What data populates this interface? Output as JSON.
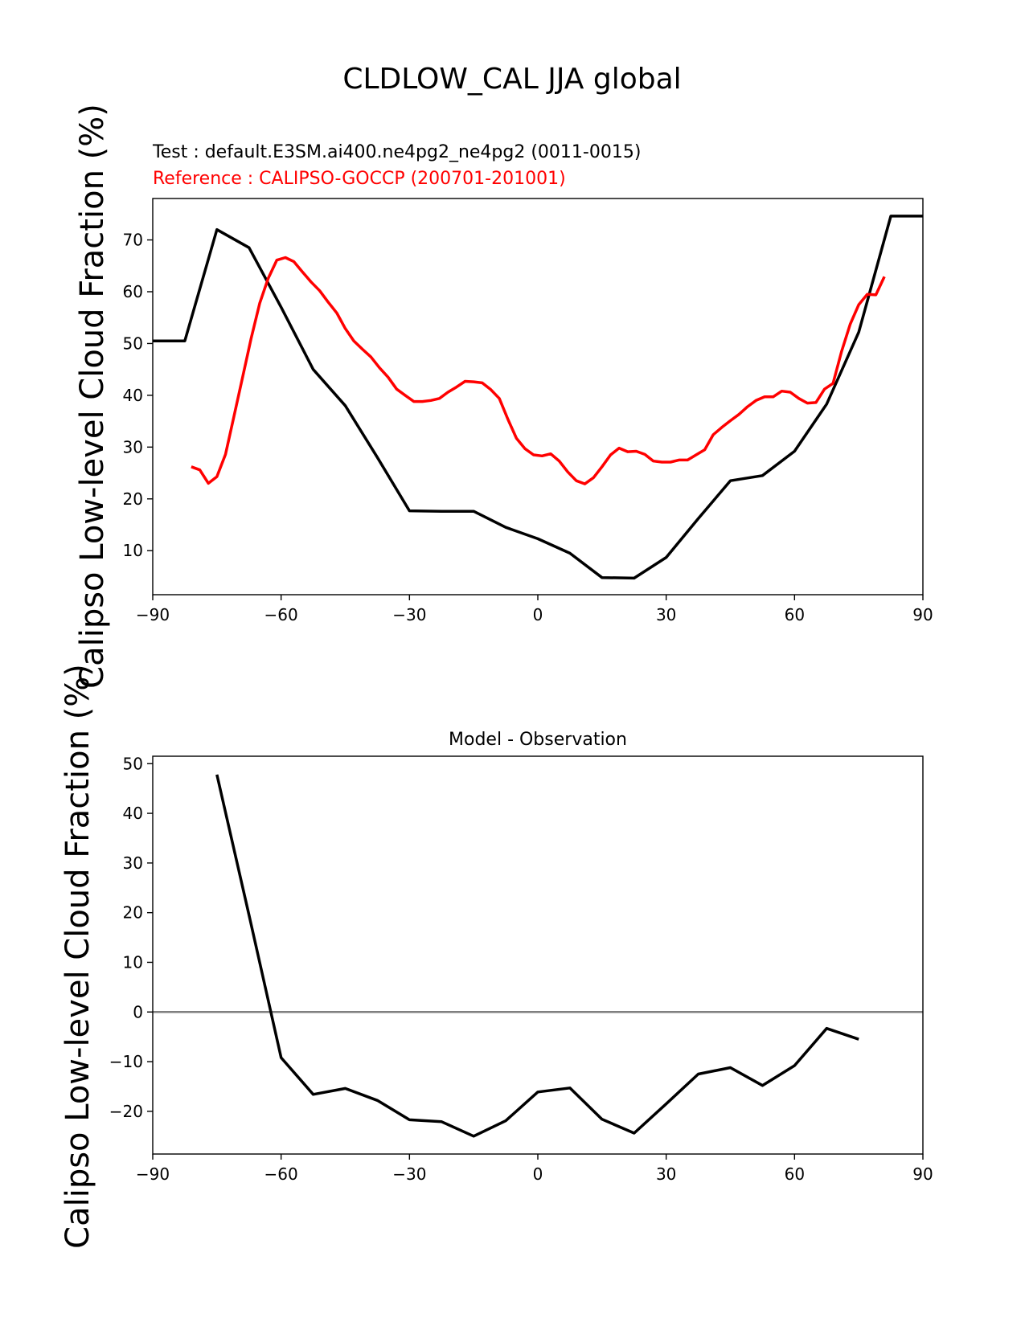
{
  "figure": {
    "title": "CLDLOW_CAL JJA global"
  },
  "chart_data": [
    {
      "type": "line",
      "test_label": "Test : default.E3SM.ai400.ne4pg2_ne4pg2 (0011-0015)",
      "reference_label": "Reference : CALIPSO-GOCCP (200701-201001)",
      "ylabel": "Calipso Low-level Cloud Fraction (%)",
      "xlim": [
        -90,
        90
      ],
      "ylim": [
        1.5,
        78
      ],
      "xticks": [
        -90,
        -60,
        -30,
        0,
        30,
        60,
        90
      ],
      "xtick_labels": [
        "−90",
        "−60",
        "−30",
        "0",
        "30",
        "60",
        "90"
      ],
      "yticks": [
        10,
        20,
        30,
        40,
        50,
        60,
        70
      ],
      "yticks_labels": [
        "10",
        "20",
        "30",
        "40",
        "50",
        "60",
        "70"
      ],
      "series": [
        {
          "color": "#000000",
          "x": [
            -90,
            -82.5,
            -75,
            -67.5,
            -60,
            -52.5,
            -45,
            -37.5,
            -30,
            -22.5,
            -15,
            -7.5,
            0,
            7.5,
            15,
            22.5,
            30,
            37.5,
            45,
            52.5,
            60,
            67.5,
            75,
            82.5,
            90
          ],
          "y": [
            50.5,
            50.5,
            72.0,
            68.5,
            57.0,
            45.0,
            38.0,
            28.0,
            17.7,
            17.6,
            17.6,
            14.5,
            12.3,
            9.5,
            4.8,
            4.7,
            8.7,
            16.2,
            23.5,
            24.5,
            29.2,
            38.3,
            52.2,
            74.6,
            74.6
          ]
        },
        {
          "color": "#ff0000",
          "x": [
            -81,
            -79,
            -77,
            -75,
            -73,
            -71,
            -69,
            -67,
            -65,
            -63,
            -61,
            -59,
            -57,
            -55,
            -53,
            -51,
            -49,
            -47,
            -45,
            -43,
            -41,
            -39,
            -37,
            -35,
            -33,
            -31,
            -29,
            -27,
            -25,
            -23,
            -21,
            -19,
            -17,
            -15,
            -13,
            -11,
            -9,
            -7,
            -5,
            -3,
            -1,
            1,
            3,
            5,
            7,
            9,
            11,
            13,
            15,
            17,
            19,
            21,
            23,
            25,
            27,
            29,
            31,
            33,
            35,
            37,
            39,
            41,
            43,
            45,
            47,
            49,
            51,
            53,
            55,
            57,
            59,
            61,
            63,
            65,
            67,
            69,
            71,
            73,
            75,
            77,
            79,
            81
          ],
          "y": [
            26.2,
            25.6,
            23.0,
            24.3,
            28.6,
            36.0,
            43.5,
            51.0,
            57.8,
            62.6,
            66.1,
            66.6,
            65.8,
            63.8,
            61.9,
            60.2,
            58.0,
            55.9,
            52.9,
            50.5,
            48.9,
            47.4,
            45.3,
            43.5,
            41.2,
            40.0,
            38.8,
            38.8,
            39.0,
            39.4,
            40.6,
            41.6,
            42.7,
            42.6,
            42.4,
            41.1,
            39.4,
            35.4,
            31.7,
            29.7,
            28.5,
            28.3,
            28.7,
            27.3,
            25.2,
            23.5,
            22.9,
            24.1,
            26.2,
            28.5,
            29.8,
            29.1,
            29.2,
            28.6,
            27.3,
            27.1,
            27.1,
            27.5,
            27.5,
            28.5,
            29.5,
            32.4,
            33.8,
            35.1,
            36.3,
            37.8,
            39.0,
            39.7,
            39.7,
            40.8,
            40.6,
            39.4,
            38.5,
            38.6,
            41.2,
            42.3,
            48.5,
            53.7,
            57.5,
            59.5,
            59.4,
            62.9
          ]
        }
      ]
    },
    {
      "type": "line",
      "title": "Model - Observation",
      "ylabel": "Calipso Low-level Cloud Fraction (%)",
      "xlim": [
        -90,
        90
      ],
      "ylim": [
        -28.6,
        51.5
      ],
      "xticks": [
        -90,
        -60,
        -30,
        0,
        30,
        60,
        90
      ],
      "xtick_labels": [
        "−90",
        "−60",
        "−30",
        "0",
        "30",
        "60",
        "90"
      ],
      "yticks": [
        -20,
        -10,
        0,
        10,
        20,
        30,
        40,
        50
      ],
      "yticks_labels": [
        "−20",
        "−10",
        "0",
        "10",
        "20",
        "30",
        "40",
        "50"
      ],
      "zero_line_color": "#808080",
      "series": [
        {
          "color": "#000000",
          "x": [
            -75,
            -67.5,
            -60,
            -52.5,
            -45,
            -37.5,
            -30,
            -22.5,
            -15,
            -7.5,
            0,
            7.5,
            15,
            22.5,
            30,
            37.5,
            45,
            52.5,
            60,
            67.5,
            75
          ],
          "y": [
            47.8,
            19.5,
            -9.2,
            -16.6,
            -15.4,
            -17.8,
            -21.7,
            -22.1,
            -25.0,
            -21.9,
            -16.1,
            -15.3,
            -21.6,
            -24.4,
            -18.5,
            -12.5,
            -11.2,
            -14.8,
            -10.8,
            -3.3,
            -5.5
          ]
        }
      ]
    }
  ]
}
